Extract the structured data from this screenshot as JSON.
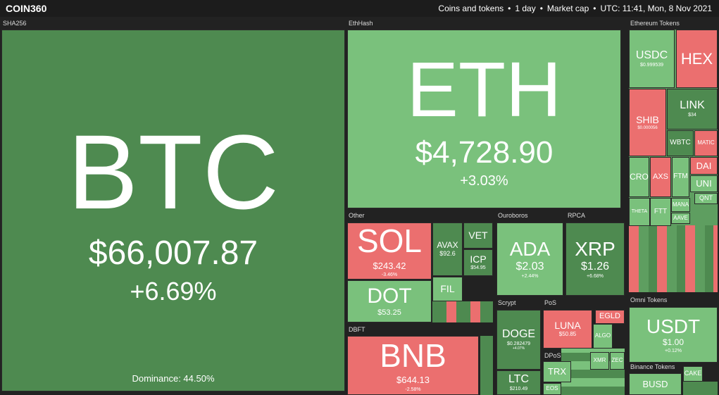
{
  "header": {
    "logo": "COIN360",
    "menu": [
      "Coins and tokens",
      "1 day",
      "Market cap",
      "UTC: 11:41, Mon, 8 Nov 2021"
    ]
  },
  "groups": [
    "SHA256",
    "EthHash",
    "Ethereum Tokens",
    "Other",
    "Ouroboros",
    "RPCA",
    "DBFT",
    "Scrypt",
    "PoS",
    "DPoS",
    "Omni Tokens",
    "Binance Tokens"
  ],
  "dominance": "Dominance: 44.50%",
  "tiles": [
    {
      "name": "BTC",
      "price": "$66,007.87",
      "change": "+6.69%",
      "color": "#4e8a50"
    },
    {
      "name": "ETH",
      "price": "$4,728.90",
      "change": "+3.03%",
      "color": "#7ac17c"
    },
    {
      "name": "SOL",
      "price": "$243.42",
      "change": "-3.46%",
      "color": "#eb6f6f"
    },
    {
      "name": "DOT",
      "price": "$53.25",
      "color": "#7ac17c"
    },
    {
      "name": "AVAX",
      "price": "$92.6",
      "color": "#4e8a50"
    },
    {
      "name": "VET",
      "color": "#4e8a50"
    },
    {
      "name": "ICP",
      "price": "$54.95",
      "color": "#4e8a50"
    },
    {
      "name": "FIL",
      "color": "#7ac17c"
    },
    {
      "name": "BNB",
      "price": "$644.13",
      "change": "-2.58%",
      "color": "#eb6f6f"
    },
    {
      "name": "ADA",
      "price": "$2.03",
      "change": "+2.44%",
      "color": "#7ac17c"
    },
    {
      "name": "XRP",
      "price": "$1.26",
      "change": "+6.68%",
      "color": "#4e8a50"
    },
    {
      "name": "DOGE",
      "price": "$0.282479",
      "change": "+4.07%",
      "color": "#4e8a50"
    },
    {
      "name": "LTC",
      "price": "$210.49",
      "color": "#4e8a50"
    },
    {
      "name": "LUNA",
      "price": "$50.85",
      "color": "#eb6f6f"
    },
    {
      "name": "ALGO",
      "color": "#7ac17c"
    },
    {
      "name": "EGLD",
      "color": "#eb6f6f"
    },
    {
      "name": "TRX",
      "color": "#7ac17c"
    },
    {
      "name": "EOS",
      "color": "#7ac17c"
    },
    {
      "name": "XMR",
      "color": "#7ac17c"
    },
    {
      "name": "ZEC",
      "color": "#7ac17c"
    },
    {
      "name": "USDC",
      "price": "$0.999539",
      "color": "#7ac17c"
    },
    {
      "name": "HEX",
      "color": "#eb6f6f"
    },
    {
      "name": "LINK",
      "price": "$34",
      "color": "#4e8a50"
    },
    {
      "name": "SHIB",
      "price": "$0.000056",
      "color": "#eb6f6f"
    },
    {
      "name": "WBTC",
      "color": "#4e8a50"
    },
    {
      "name": "MATIC",
      "color": "#eb6f6f"
    },
    {
      "name": "CRO",
      "color": "#7ac17c"
    },
    {
      "name": "AXS",
      "color": "#eb6f6f"
    },
    {
      "name": "FTM",
      "color": "#7ac17c"
    },
    {
      "name": "DAI",
      "color": "#eb6f6f"
    },
    {
      "name": "UNI",
      "color": "#7ac17c"
    },
    {
      "name": "USDT",
      "price": "$1.00",
      "change": "+0.12%",
      "color": "#7ac17c"
    },
    {
      "name": "BUSD",
      "color": "#7ac17c"
    },
    {
      "name": "CAKE",
      "color": "#7ac17c"
    },
    {
      "name": "MANA",
      "color": "#7ac17c"
    },
    {
      "name": "QNT",
      "color": "#7ac17c"
    },
    {
      "name": "AAVE",
      "color": "#7ac17c"
    },
    {
      "name": "THETA",
      "color": "#7ac17c"
    },
    {
      "name": "FTT",
      "color": "#7ac17c"
    }
  ]
}
